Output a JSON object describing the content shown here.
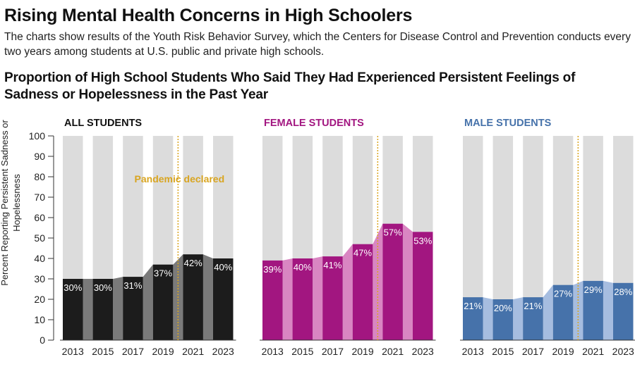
{
  "header": {
    "title": "Rising Mental Health Concerns in High Schoolers",
    "subtitle": "The charts show results of the Youth Risk Behavior Survey, which the Centers for Disease Control and Prevention conducts every two years among students at U.S. public and private high schools."
  },
  "colors": {
    "background_bar": "#dcdcdc",
    "annotation": "#d9a520",
    "all_dark": "#1c1c1c",
    "all_light": "#7a7a7a",
    "female_dark": "#a21680",
    "female_light": "#d986c2",
    "male_dark": "#4672aa",
    "male_light": "#a6bde0"
  },
  "chart_data": {
    "type": "bar",
    "title": "Proportion of High School Students Who Said They Had Experienced Persistent Feelings of Sadness or Hopelessness in the Past Year",
    "ylabel": "Percent Reporting Persistent Sadness or Hopelessness",
    "ylim": [
      0,
      100
    ],
    "yticks": [
      "0",
      "10",
      "20",
      "30",
      "40",
      "50",
      "60",
      "70",
      "80",
      "90",
      "100"
    ],
    "categories": [
      "2013",
      "2015",
      "2017",
      "2019",
      "2021",
      "2023"
    ],
    "annotation": {
      "label": "Pandemic declared",
      "between": [
        "2019",
        "2021"
      ]
    },
    "series": [
      {
        "name": "ALL STUDENTS",
        "values": [
          30,
          30,
          31,
          37,
          42,
          40
        ],
        "labels": [
          "30%",
          "30%",
          "31%",
          "37%",
          "42%",
          "40%"
        ]
      },
      {
        "name": "FEMALE STUDENTS",
        "values": [
          39,
          40,
          41,
          47,
          57,
          53
        ],
        "labels": [
          "39%",
          "40%",
          "41%",
          "47%",
          "57%",
          "53%"
        ]
      },
      {
        "name": "MALE STUDENTS",
        "values": [
          21,
          20,
          21,
          27,
          29,
          28
        ],
        "labels": [
          "21%",
          "20%",
          "21%",
          "27%",
          "29%",
          "28%"
        ]
      }
    ]
  }
}
